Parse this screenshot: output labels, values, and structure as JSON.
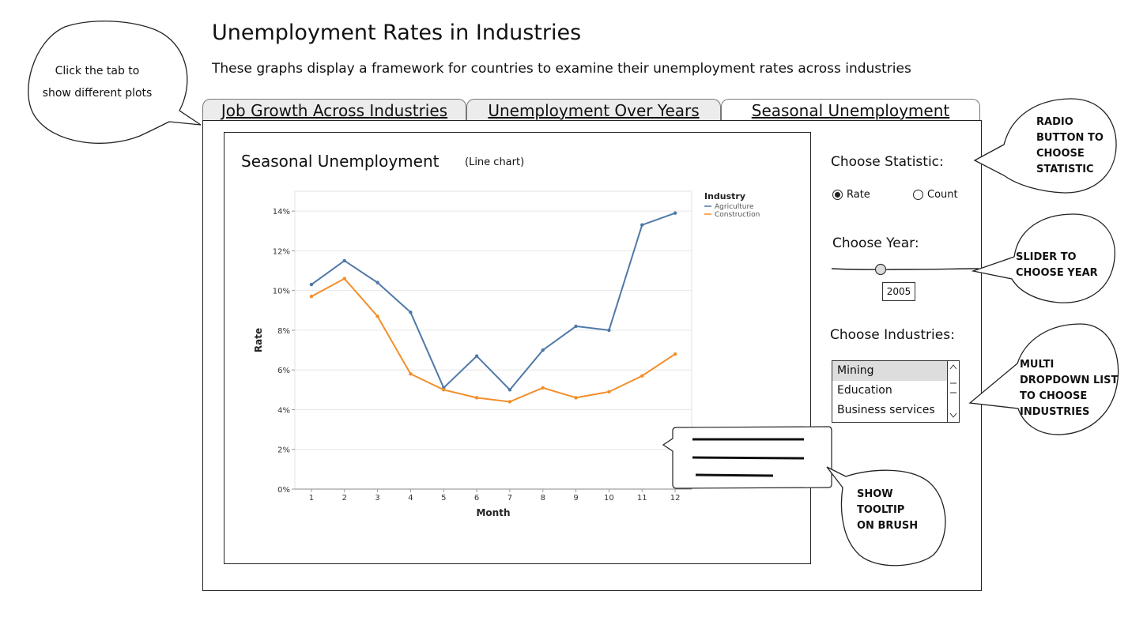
{
  "header": {
    "title": "Unemployment Rates in Industries",
    "subtitle": "These graphs display a framework for countries to examine their unemployment rates across industries"
  },
  "tabs": [
    {
      "label": "Job Growth Across Industries",
      "active": false
    },
    {
      "label": "Unemployment Over Years",
      "active": false
    },
    {
      "label": "Seasonal Unemployment",
      "active": true
    }
  ],
  "chart_header": {
    "title": "Seasonal Unemployment",
    "type_note": "(Line chart)"
  },
  "chart_data": {
    "type": "line",
    "xlabel": "Month",
    "ylabel": "Rate",
    "x": [
      1,
      2,
      3,
      4,
      5,
      6,
      7,
      8,
      9,
      10,
      11,
      12
    ],
    "x_tick_labels": [
      "1",
      "2",
      "3",
      "4",
      "5",
      "6",
      "7",
      "8",
      "9",
      "10",
      "11",
      "12"
    ],
    "ylim": [
      0,
      15
    ],
    "y_ticks": [
      0,
      2,
      4,
      6,
      8,
      10,
      12,
      14
    ],
    "y_tick_labels": [
      "0%",
      "2%",
      "4%",
      "6%",
      "8%",
      "10%",
      "12%",
      "14%"
    ],
    "grid": true,
    "legend": {
      "title": "Industry",
      "placement": "top-right"
    },
    "series": [
      {
        "name": "Agriculture",
        "color": "#4e79a7",
        "values": [
          10.3,
          11.5,
          10.4,
          8.9,
          5.1,
          6.7,
          5.0,
          7.0,
          8.2,
          8.0,
          13.3,
          13.9
        ]
      },
      {
        "name": "Construction",
        "color": "#f28e2b",
        "values": [
          9.7,
          10.6,
          8.7,
          5.8,
          5.0,
          4.6,
          4.4,
          5.1,
          4.6,
          4.9,
          5.7,
          6.8
        ]
      }
    ]
  },
  "controls": {
    "statistic": {
      "label": "Choose Statistic:",
      "options": [
        {
          "label": "Rate",
          "selected": true
        },
        {
          "label": "Count",
          "selected": false
        }
      ]
    },
    "year": {
      "label": "Choose Year:",
      "value": "2005"
    },
    "industries": {
      "label": "Choose Industries:",
      "options": [
        {
          "label": "Mining",
          "selected": true
        },
        {
          "label": "Education",
          "selected": false
        },
        {
          "label": "Business services",
          "selected": false
        }
      ]
    }
  },
  "annotations": {
    "tabs_hint": [
      "Click the tab to",
      "show different plots"
    ],
    "radio_note": [
      "RADIO",
      "BUTTON TO",
      "CHOOSE",
      "STATISTIC"
    ],
    "slider_note": [
      "SLIDER TO",
      "CHOOSE YEAR"
    ],
    "dropdown_note": [
      "MULTI",
      "DROPDOWN LIST",
      "TO CHOOSE",
      "INDUSTRIES"
    ],
    "tooltip_note": [
      "SHOW",
      "TOOLTIP",
      "ON BRUSH"
    ]
  }
}
